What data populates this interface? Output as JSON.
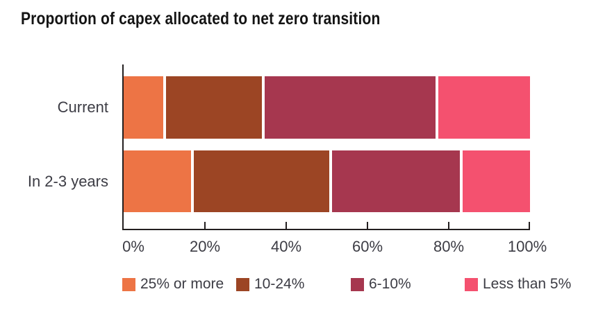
{
  "title": "Proportion of capex allocated to net zero transition",
  "colors": {
    "axis": "#231F20",
    "label_text": "#3C3C44",
    "title_text": "#141414",
    "background": "#FFFFFF"
  },
  "chart_data": {
    "type": "bar",
    "orientation": "horizontal",
    "stacked": true,
    "title": "Proportion of capex allocated to net zero transition",
    "categories": [
      "Current",
      "In 2-3 years"
    ],
    "series": [
      {
        "name": "25% or more",
        "color": "#ED7445",
        "values": [
          10,
          17
        ]
      },
      {
        "name": "10-24%",
        "color": "#9C4524",
        "values": [
          24,
          34
        ]
      },
      {
        "name": "6-10%",
        "color": "#A6374F",
        "values": [
          43,
          32
        ]
      },
      {
        "name": "Less than 5%",
        "color": "#F4516F",
        "values": [
          23,
          17
        ]
      }
    ],
    "xlim": [
      0,
      100
    ],
    "x_tick_labels": [
      "0%",
      "20%",
      "40%",
      "60%",
      "80%",
      "100%"
    ],
    "x_tick_values": [
      0,
      20,
      40,
      60,
      80,
      100
    ],
    "grid": false,
    "legend_position": "bottom"
  }
}
